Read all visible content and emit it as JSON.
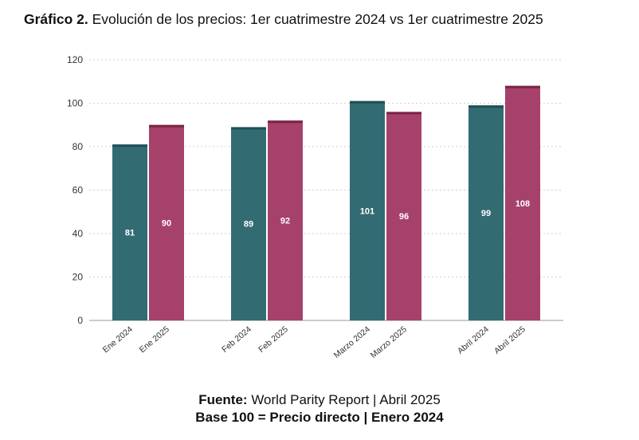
{
  "title": {
    "prefix": "Gráfico 2.",
    "text": "Evolución de los precios: 1er cuatrimestre 2024 vs 1er cuatrimestre 2025"
  },
  "footer": {
    "source_label": "Fuente:",
    "source_text": "World Parity Report | Abril 2025",
    "base_text": "Base 100 = Precio directo | Enero 2024"
  },
  "colors": {
    "series_2024": "#336b73",
    "series_2024_cap": "#1f4f57",
    "series_2025": "#a6416b",
    "series_2025_cap": "#7a2444",
    "grid": "#cfcfcf",
    "axis": "#999999"
  },
  "chart_data": {
    "type": "bar",
    "ylim": [
      0,
      120
    ],
    "yticks": [
      0,
      20,
      40,
      60,
      80,
      100,
      120
    ],
    "grid": true,
    "data_labels": true,
    "bars": [
      {
        "label": "Ene 2024",
        "value": 81,
        "series": "2024"
      },
      {
        "label": "Ene 2025",
        "value": 90,
        "series": "2025"
      },
      {
        "label": "Feb 2024",
        "value": 89,
        "series": "2024"
      },
      {
        "label": "Feb 2025",
        "value": 92,
        "series": "2025"
      },
      {
        "label": "Marzo 2024",
        "value": 101,
        "series": "2024"
      },
      {
        "label": "Marzo 2025",
        "value": 96,
        "series": "2025"
      },
      {
        "label": "Abril 2024",
        "value": 99,
        "series": "2024"
      },
      {
        "label": "Abril 2025",
        "value": 108,
        "series": "2025"
      }
    ]
  }
}
